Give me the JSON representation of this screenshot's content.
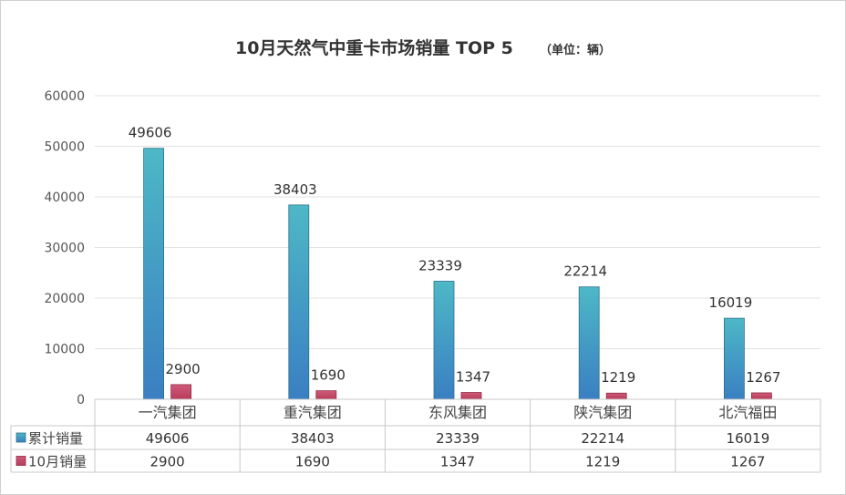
{
  "chart_data": {
    "type": "bar",
    "title": "10月天然气中重卡市场销量 TOP 5",
    "unit_note": "（单位：辆）",
    "categories": [
      "一汽集团",
      "重汽集团",
      "东风集团",
      "陕汽集团",
      "北汽福田"
    ],
    "series": [
      {
        "name": "累计销量",
        "values": [
          49606,
          38403,
          23339,
          22214,
          16019
        ],
        "color_top": "#4db8c6",
        "color_bottom": "#3a7fc2"
      },
      {
        "name": "10月销量",
        "values": [
          2900,
          1690,
          1347,
          1219,
          1267
        ],
        "color_top": "#d05a78",
        "color_bottom": "#b83c5c"
      }
    ],
    "ylim": [
      0,
      60000
    ],
    "yticks": [
      0,
      10000,
      20000,
      30000,
      40000,
      50000,
      60000
    ],
    "grid": true,
    "data_labels": true,
    "data_table": true
  }
}
